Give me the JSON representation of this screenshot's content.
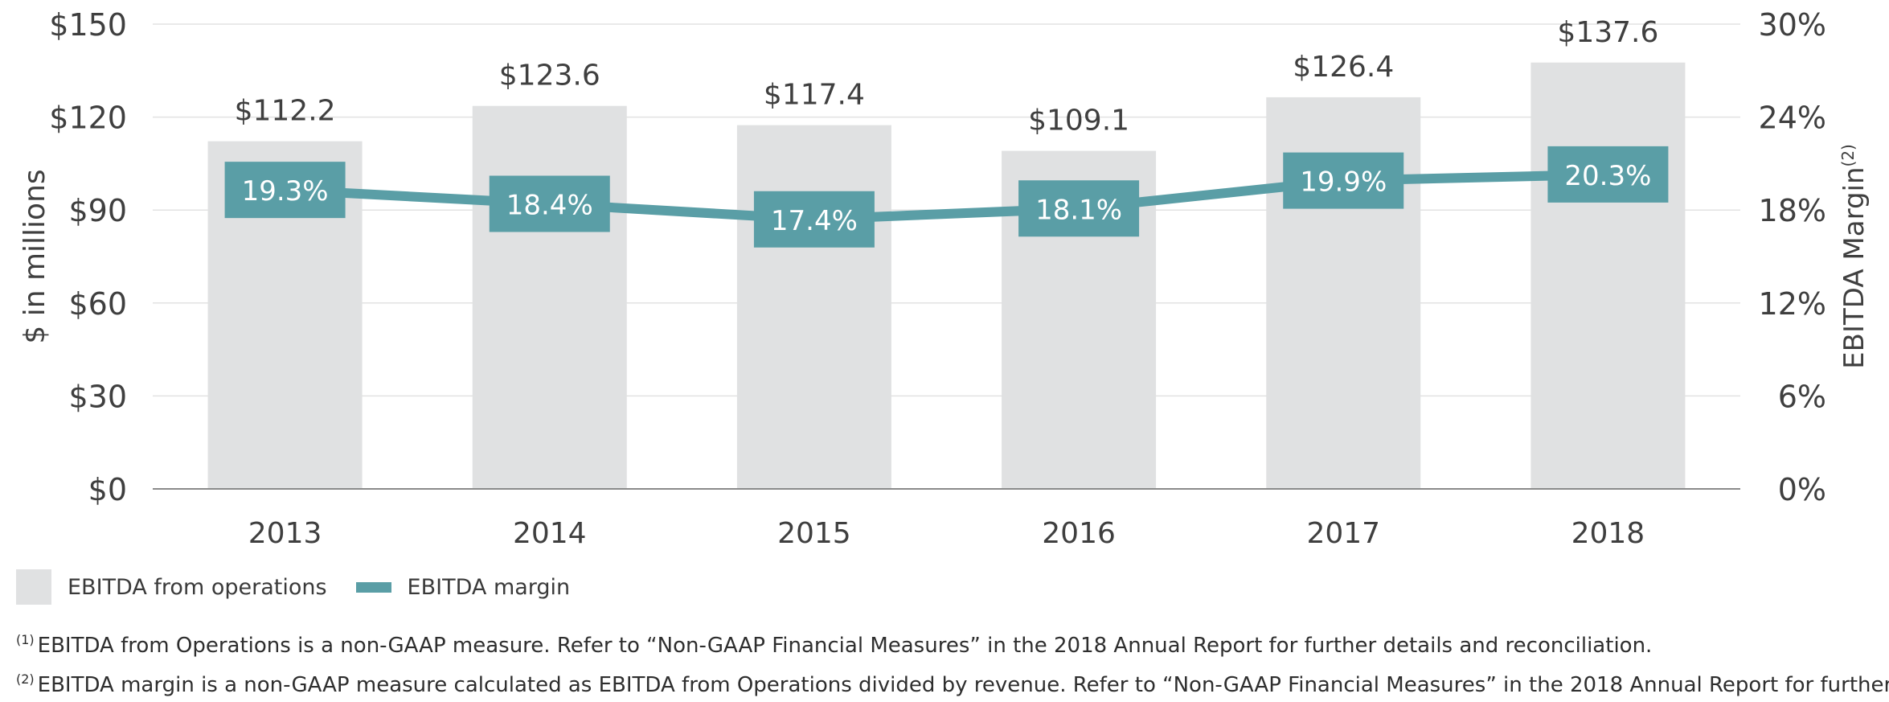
{
  "chart_data": {
    "type": "bar",
    "categories": [
      "2013",
      "2014",
      "2015",
      "2016",
      "2017",
      "2018"
    ],
    "series": [
      {
        "name": "EBITDA from operations",
        "type": "bar",
        "axis": "left",
        "values": [
          112.2,
          123.6,
          117.4,
          109.1,
          126.4,
          137.6
        ],
        "labels": [
          "$112.2",
          "$123.6",
          "$117.4",
          "$109.1",
          "$126.4",
          "$137.6"
        ]
      },
      {
        "name": "EBITDA margin",
        "type": "line",
        "axis": "right",
        "values": [
          19.3,
          18.4,
          17.4,
          18.1,
          19.9,
          20.3
        ],
        "labels": [
          "19.3%",
          "18.4%",
          "17.4%",
          "18.1%",
          "19.9%",
          "20.3%"
        ]
      }
    ],
    "ylabel": "$ in millions",
    "y2label": "EBITDA Margin",
    "y2label_sup": "(2)",
    "ylim": [
      0,
      150
    ],
    "y2lim": [
      0,
      30
    ],
    "yticks": [
      "$0",
      "$30",
      "$60",
      "$90",
      "$120",
      "$150"
    ],
    "y2ticks": [
      "0%",
      "6%",
      "12%",
      "18%",
      "24%",
      "30%"
    ],
    "grid": true,
    "legend_position": "bottom-left",
    "colors": {
      "bar": "#e0e1e2",
      "line": "#5a9ea6",
      "grid": "#e2e2e2",
      "axis": "#8a8a8a",
      "text": "#3f3f3f"
    }
  },
  "legend": {
    "bar_label": "EBITDA from operations",
    "line_label": "EBITDA margin"
  },
  "footnotes": [
    {
      "marker": "(1)",
      "text": "EBITDA from Operations is a non-GAAP measure. Refer to “Non-GAAP Financial Measures” in the 2018 Annual Report for further details and reconciliation."
    },
    {
      "marker": "(2)",
      "text": "EBITDA margin is a non-GAAP measure calculated as EBITDA from Operations divided by revenue. Refer to “Non-GAAP Financial Measures” in the 2018 Annual Report for further details."
    }
  ]
}
